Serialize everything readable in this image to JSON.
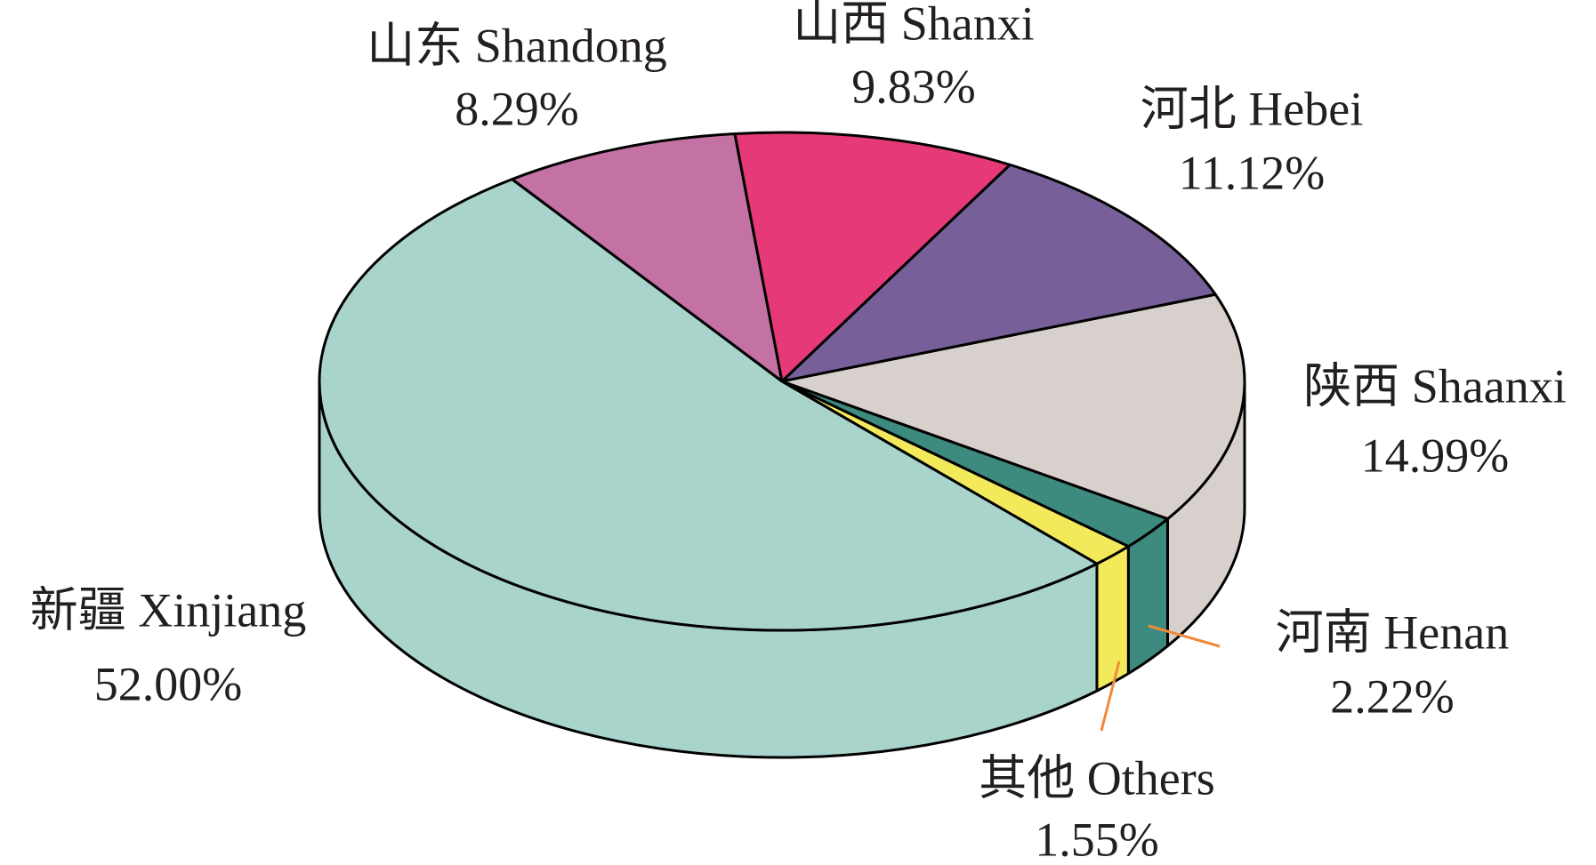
{
  "chart_data": {
    "type": "pie",
    "categories": [
      "山东 Shandong",
      "山西 Shanxi",
      "河北 Hebei",
      "陕西 Shaanxi",
      "河南 Henan",
      "其他 Others",
      "新疆 Xinjiang"
    ],
    "values": [
      8.29,
      9.83,
      11.12,
      14.99,
      2.22,
      1.55,
      52.0
    ],
    "value_labels": [
      "8.29%",
      "9.83%",
      "11.12%",
      "14.99%",
      "2.22%",
      "1.55%",
      "52.00%"
    ],
    "colors": [
      "#c472a4",
      "#e63a78",
      "#77609a",
      "#d8d0cc",
      "#3d8a7e",
      "#f2ea5a",
      "#a8d4cb"
    ]
  }
}
